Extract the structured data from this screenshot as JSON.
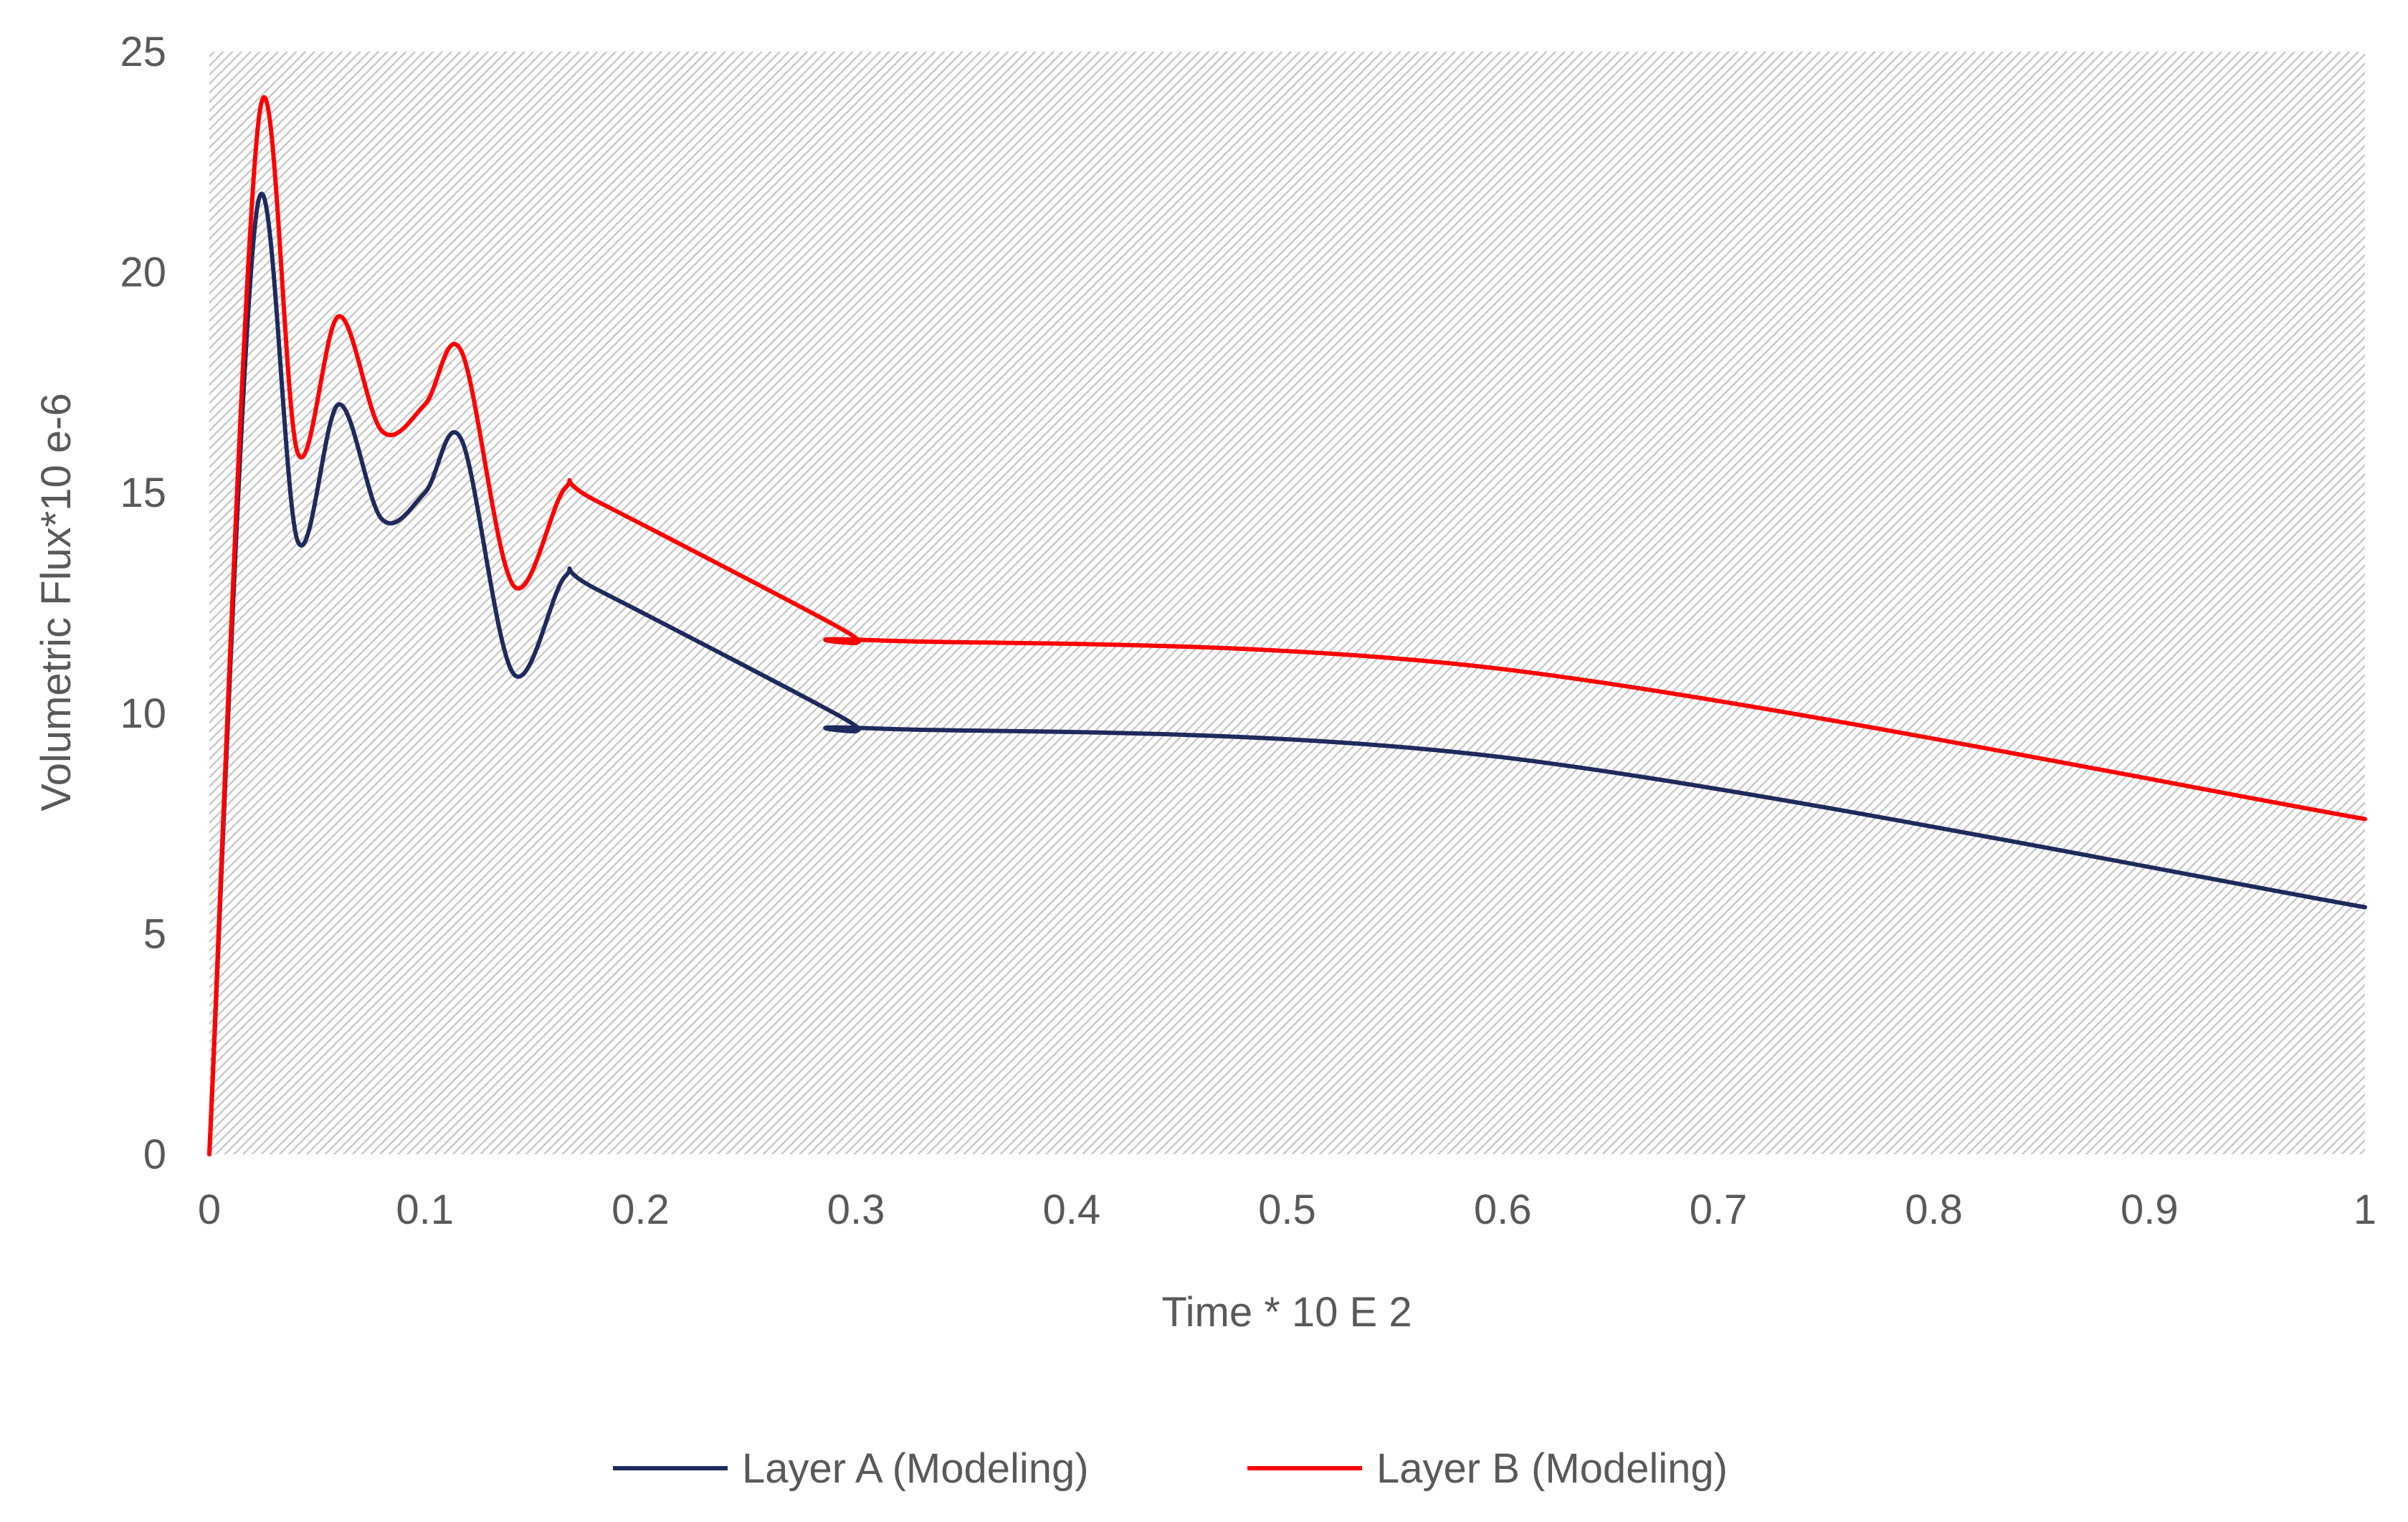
{
  "chart_data": {
    "type": "line",
    "title": "",
    "xlabel": "Time * 10 E 2",
    "ylabel": "Volumetric Flux*10 e-6",
    "xlim": [
      0,
      1
    ],
    "ylim": [
      0,
      25
    ],
    "x_ticks": [
      0,
      0.1,
      0.2,
      0.3,
      0.4,
      0.5,
      0.6,
      0.7,
      0.8,
      0.9,
      1
    ],
    "x_tick_labels": [
      "0",
      "0.1",
      "0.2",
      "0.3",
      "0.4",
      "0.5",
      "0.6",
      "0.7",
      "0.8",
      "0.9",
      "1"
    ],
    "y_ticks": [
      0,
      5,
      10,
      15,
      20,
      25
    ],
    "y_tick_labels": [
      "0",
      "5",
      "10",
      "15",
      "20",
      "25"
    ],
    "grid": false,
    "background": "diagonal-hatch",
    "legend_position": "bottom-center",
    "series": [
      {
        "name": "Layer A (Modeling)",
        "color": "#1f2a5c",
        "points": [
          [
            0,
            0
          ],
          [
            0.022,
            21.4
          ],
          [
            0.041,
            13.9
          ],
          [
            0.06,
            17.0
          ],
          [
            0.08,
            14.4
          ],
          [
            0.1,
            15.0
          ],
          [
            0.117,
            16.2
          ],
          [
            0.141,
            10.9
          ],
          [
            0.165,
            13.1
          ],
          [
            0.18,
            12.8
          ],
          [
            0.29,
            10.0
          ],
          [
            0.3,
            9.6
          ],
          [
            0.31,
            9.65
          ],
          [
            0.6,
            9.0
          ],
          [
            1.0,
            5.6
          ]
        ]
      },
      {
        "name": "Layer B (Modeling)",
        "color": "#ff0000",
        "points": [
          [
            0,
            0
          ],
          [
            0.023,
            23.5
          ],
          [
            0.041,
            15.9
          ],
          [
            0.06,
            19.0
          ],
          [
            0.08,
            16.4
          ],
          [
            0.1,
            17.0
          ],
          [
            0.117,
            18.2
          ],
          [
            0.141,
            12.9
          ],
          [
            0.165,
            15.1
          ],
          [
            0.18,
            14.8
          ],
          [
            0.29,
            12.0
          ],
          [
            0.3,
            11.6
          ],
          [
            0.31,
            11.65
          ],
          [
            0.6,
            11.0
          ],
          [
            1.0,
            7.6
          ]
        ]
      }
    ]
  }
}
